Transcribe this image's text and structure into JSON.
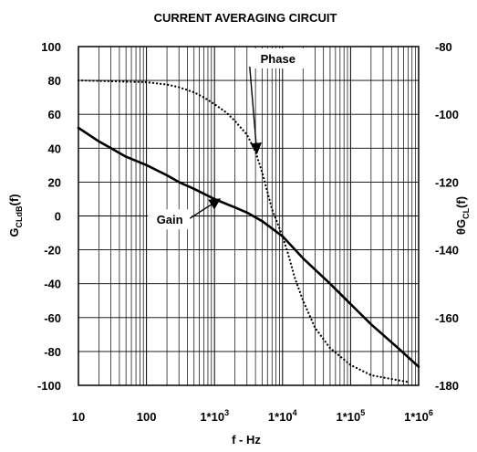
{
  "chart_data": {
    "type": "line",
    "title": "CURRENT AVERAGING CIRCUIT",
    "xlabel": "f - Hz",
    "x_scale": "log",
    "xlim": [
      10,
      1000000
    ],
    "x_ticks": [
      {
        "value": 10,
        "label": "10"
      },
      {
        "value": 100,
        "label": "100"
      },
      {
        "value": 1000,
        "label": "1*10",
        "exp": "3"
      },
      {
        "value": 10000,
        "label": "1*10",
        "exp": "4"
      },
      {
        "value": 100000,
        "label": "1*10",
        "exp": "5"
      },
      {
        "value": 1000000,
        "label": "1*10",
        "exp": "6"
      }
    ],
    "ylabel_left": {
      "base": "G",
      "sub": "CLdB",
      "suffix": "(f)"
    },
    "ylim_left": [
      -100,
      100
    ],
    "y_ticks_left": [
      100,
      80,
      60,
      40,
      20,
      0,
      -20,
      -40,
      -60,
      -80,
      -100
    ],
    "ylabel_right": {
      "base": "θG",
      "sub": "CL",
      "suffix": "(f)"
    },
    "ylim_right": [
      -180,
      -80
    ],
    "y_ticks_right": [
      -80,
      -100,
      -120,
      -140,
      -160,
      -180
    ],
    "grid": true,
    "series": [
      {
        "name": "Gain",
        "axis": "left",
        "style": "solid",
        "color": "#000000",
        "x": [
          10,
          20,
          50,
          100,
          200,
          300,
          500,
          1000,
          2000,
          3000,
          5000,
          10000,
          20000,
          50000,
          100000,
          200000,
          500000,
          1000000
        ],
        "y": [
          52,
          44,
          35,
          30,
          24,
          20,
          16,
          10,
          5,
          2,
          -3,
          -12,
          -25,
          -40,
          -52,
          -64,
          -78,
          -89
        ]
      },
      {
        "name": "Phase",
        "axis": "right",
        "style": "dotted",
        "color": "#000000",
        "x": [
          10,
          100,
          200,
          300,
          500,
          700,
          1000,
          1500,
          2000,
          3000,
          4000,
          5000,
          6000,
          7000,
          8000,
          10000,
          12000,
          15000,
          20000,
          30000,
          50000,
          100000,
          200000,
          500000,
          700000
        ],
        "y": [
          -90,
          -90.5,
          -91.2,
          -92,
          -93.5,
          -95,
          -97,
          -99.5,
          -102,
          -106,
          -111,
          -117,
          -123,
          -128,
          -131,
          -136,
          -141,
          -148,
          -155,
          -163,
          -169,
          -174,
          -177,
          -178.5,
          -179
        ]
      }
    ],
    "annotations": [
      {
        "text": "Phase",
        "x": 10000,
        "y": 93
      },
      {
        "text": "Gain",
        "x": 220,
        "y": -2
      }
    ]
  }
}
